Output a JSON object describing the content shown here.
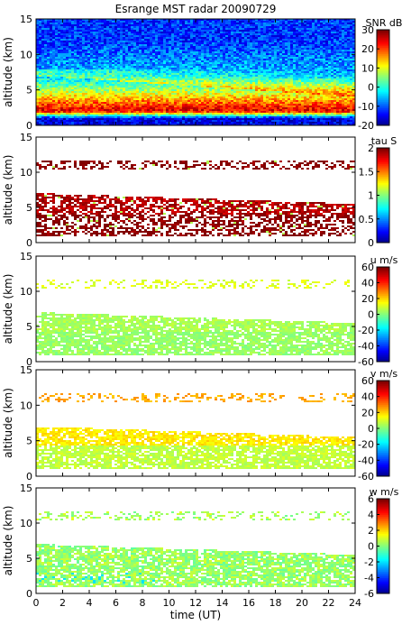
{
  "chart_data": [
    {
      "type": "heatmap",
      "title": "Esrange MST radar 20090729",
      "xlabel": "",
      "ylabel": "altitude (km)",
      "xlim": [
        0,
        24
      ],
      "ylim": [
        0,
        15
      ],
      "yticks": [
        "0",
        "5",
        "10",
        "15"
      ],
      "colorbar": {
        "label": "SNR dB",
        "range": [
          -20,
          30
        ],
        "ticks": [
          "-20",
          "-10",
          "0",
          "10",
          "20",
          "30"
        ]
      },
      "layers": [
        {
          "altitude": 1.0,
          "value": -15
        },
        {
          "altitude": 2.0,
          "value": 25
        },
        {
          "altitude": 3.0,
          "value": 20
        },
        {
          "altitude": 4.5,
          "value": 10
        },
        {
          "altitude": 7.0,
          "value": -5
        },
        {
          "altitude": 12.0,
          "value": -12
        }
      ]
    },
    {
      "type": "heatmap",
      "xlabel": "",
      "ylabel": "altitude (km)",
      "xlim": [
        0,
        24
      ],
      "ylim": [
        0,
        15
      ],
      "yticks": [
        "0",
        "5",
        "10",
        "15"
      ],
      "colorbar": {
        "label": "tau S",
        "range": [
          0,
          2
        ],
        "ticks": [
          "0",
          "0.5",
          "1",
          "1.5",
          "2"
        ]
      },
      "layers": [
        {
          "altitude": 2.5,
          "value": 2
        },
        {
          "altitude": 5.5,
          "value": 1.9
        },
        {
          "altitude": 11.0,
          "value": 2
        }
      ]
    },
    {
      "type": "heatmap",
      "xlabel": "",
      "ylabel": "altitude (km)",
      "xlim": [
        0,
        24
      ],
      "ylim": [
        0,
        15
      ],
      "yticks": [
        "0",
        "5",
        "10",
        "15"
      ],
      "colorbar": {
        "label": "u m/s",
        "range": [
          -60,
          60
        ],
        "ticks": [
          "-60",
          "-40",
          "-20",
          "0",
          "20",
          "40",
          "60"
        ]
      },
      "layers": [
        {
          "altitude": 3.0,
          "value": 3
        },
        {
          "altitude": 5.5,
          "value": 5
        },
        {
          "altitude": 11.0,
          "value": 12
        }
      ]
    },
    {
      "type": "heatmap",
      "xlabel": "",
      "ylabel": "altitude (km)",
      "xlim": [
        0,
        24
      ],
      "ylim": [
        0,
        15
      ],
      "yticks": [
        "0",
        "5",
        "10",
        "15"
      ],
      "colorbar": {
        "label": "v m/s",
        "range": [
          -60,
          60
        ],
        "ticks": [
          "-60",
          "-40",
          "-20",
          "0",
          "20",
          "40",
          "60"
        ]
      },
      "layers": [
        {
          "altitude": 3.0,
          "value": 8
        },
        {
          "altitude": 5.5,
          "value": 18
        },
        {
          "altitude": 11.0,
          "value": 25
        }
      ]
    },
    {
      "type": "heatmap",
      "xlabel": "time (UT)",
      "ylabel": "altitude (km)",
      "xlim": [
        0,
        24
      ],
      "ylim": [
        0,
        15
      ],
      "xticks": [
        "0",
        "2",
        "4",
        "6",
        "8",
        "10",
        "12",
        "14",
        "16",
        "18",
        "20",
        "22",
        "24"
      ],
      "yticks": [
        "0",
        "5",
        "10",
        "15"
      ],
      "colorbar": {
        "label": "w m/s",
        "range": [
          -6,
          6
        ],
        "ticks": [
          "-6",
          "-4",
          "-2",
          "0",
          "2",
          "4",
          "6"
        ]
      },
      "layers": [
        {
          "altitude": 3.0,
          "value": 0.3
        },
        {
          "altitude": 11.0,
          "value": 0.5
        }
      ]
    }
  ]
}
